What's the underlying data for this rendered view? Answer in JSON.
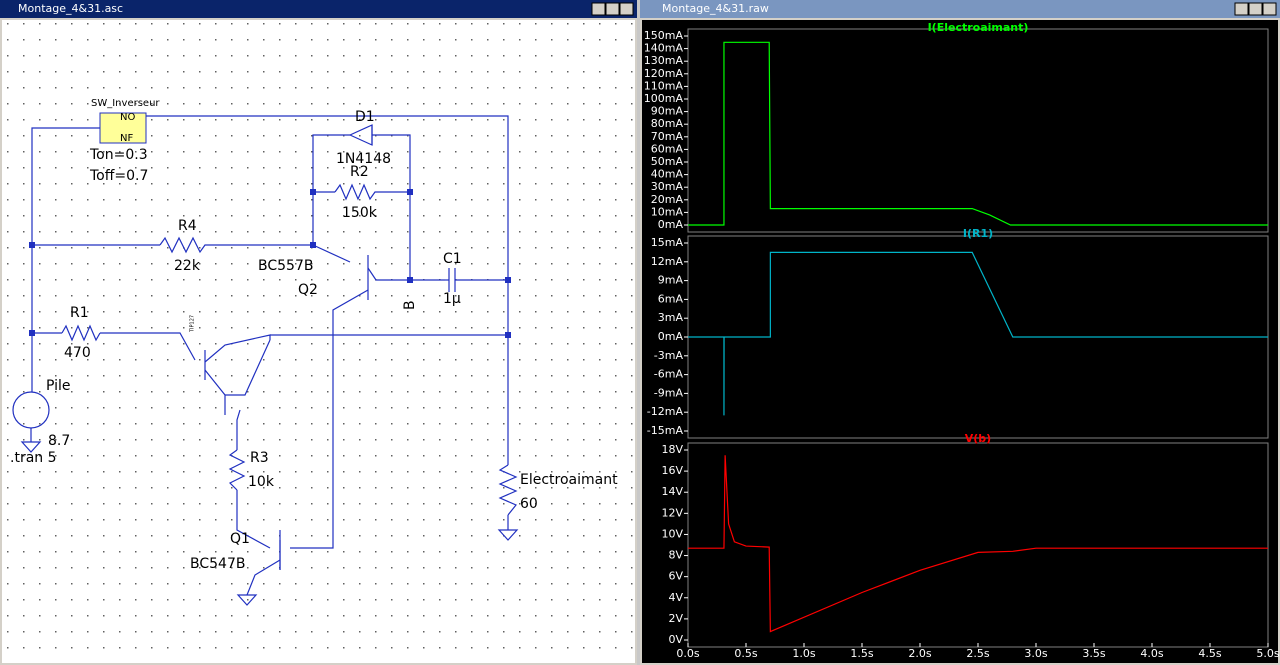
{
  "schematic_window": {
    "title": "Montage_4&31.asc",
    "labels": {
      "switch_name": "SW_Inverseur",
      "no": "NO",
      "nf": "NF",
      "ton": "Ton=0.3",
      "toff": "Toff=0.7",
      "d1": "D1",
      "d1_model": "1N4148",
      "r2": "R2",
      "r2_value": "150k",
      "r4": "R4",
      "r4_value": "22k",
      "q2_model": "BC557B",
      "q2": "Q2",
      "c1": "C1",
      "c1_value": "1µ",
      "node_b": "B",
      "r1": "R1",
      "r1_value": "470",
      "q3_model": "TIP127",
      "pile": "Pile",
      "pile_value": "8.7",
      "directive": ".tran 5",
      "r3": "R3",
      "r3_value": "10k",
      "q1": "Q1",
      "q1_model": "BC547B",
      "load": "Electroaimant",
      "load_value": "60"
    }
  },
  "waveform_window": {
    "title": "Montage_4&31.raw",
    "xlim": [
      0,
      5
    ],
    "xticks": [
      {
        "value": 0,
        "label": "0.0s"
      },
      {
        "value": 0.5,
        "label": "0.5s"
      },
      {
        "value": 1,
        "label": "1.0s"
      },
      {
        "value": 1.5,
        "label": "1.5s"
      },
      {
        "value": 2,
        "label": "2.0s"
      },
      {
        "value": 2.5,
        "label": "2.5s"
      },
      {
        "value": 3,
        "label": "3.0s"
      },
      {
        "value": 3.5,
        "label": "3.5s"
      },
      {
        "value": 4,
        "label": "4.0s"
      },
      {
        "value": 4.5,
        "label": "4.5s"
      },
      {
        "value": 5,
        "label": "5.0s"
      }
    ],
    "panes": [
      {
        "type": "line",
        "title": "I(Electroaimant)",
        "color": "#00ff00",
        "ylim": [
          0,
          150
        ],
        "yticks": [
          {
            "value": 0,
            "label": "0mA"
          },
          {
            "value": 10,
            "label": "10mA"
          },
          {
            "value": 20,
            "label": "20mA"
          },
          {
            "value": 30,
            "label": "30mA"
          },
          {
            "value": 40,
            "label": "40mA"
          },
          {
            "value": 50,
            "label": "50mA"
          },
          {
            "value": 60,
            "label": "60mA"
          },
          {
            "value": 70,
            "label": "70mA"
          },
          {
            "value": 80,
            "label": "80mA"
          },
          {
            "value": 90,
            "label": "90mA"
          },
          {
            "value": 100,
            "label": "100mA"
          },
          {
            "value": 110,
            "label": "110mA"
          },
          {
            "value": 120,
            "label": "120mA"
          },
          {
            "value": 130,
            "label": "130mA"
          },
          {
            "value": 140,
            "label": "140mA"
          },
          {
            "value": 150,
            "label": "150mA"
          }
        ],
        "x": [
          0,
          0.31,
          0.31,
          0.7,
          0.71,
          2.45,
          2.6,
          2.78,
          5
        ],
        "values": [
          0,
          0,
          145,
          145,
          13,
          13,
          8,
          0,
          0
        ]
      },
      {
        "type": "line",
        "title": "I(R1)",
        "color": "#00b4c8",
        "ylim": [
          -15,
          15
        ],
        "yticks": [
          {
            "value": -15,
            "label": "-15mA"
          },
          {
            "value": -12,
            "label": "-12mA"
          },
          {
            "value": -9,
            "label": "-9mA"
          },
          {
            "value": -6,
            "label": "-6mA"
          },
          {
            "value": -3,
            "label": "-3mA"
          },
          {
            "value": 0,
            "label": "0mA"
          },
          {
            "value": 3,
            "label": "3mA"
          },
          {
            "value": 6,
            "label": "6mA"
          },
          {
            "value": 9,
            "label": "9mA"
          },
          {
            "value": 12,
            "label": "12mA"
          },
          {
            "value": 15,
            "label": "15mA"
          }
        ],
        "x": [
          0,
          0.31,
          0.31,
          0.311,
          0.71,
          0.71,
          2.45,
          2.8,
          5
        ],
        "values": [
          0,
          0,
          -12.5,
          0,
          0,
          13.5,
          13.5,
          0,
          0
        ]
      },
      {
        "type": "line",
        "title": "V(b)",
        "color": "#ff0000",
        "ylim": [
          0,
          18
        ],
        "yticks": [
          {
            "value": 0,
            "label": "0V"
          },
          {
            "value": 2,
            "label": "2V"
          },
          {
            "value": 4,
            "label": "4V"
          },
          {
            "value": 6,
            "label": "6V"
          },
          {
            "value": 8,
            "label": "8V"
          },
          {
            "value": 10,
            "label": "10V"
          },
          {
            "value": 12,
            "label": "12V"
          },
          {
            "value": 14,
            "label": "14V"
          },
          {
            "value": 16,
            "label": "16V"
          },
          {
            "value": 18,
            "label": "18V"
          }
        ],
        "x": [
          0,
          0.31,
          0.32,
          0.35,
          0.4,
          0.5,
          0.7,
          0.71,
          1.5,
          2.0,
          2.5,
          2.8,
          3.0,
          5
        ],
        "values": [
          8.7,
          8.7,
          17.5,
          11,
          9.3,
          8.9,
          8.8,
          0.8,
          4.5,
          6.6,
          8.3,
          8.4,
          8.7,
          8.7
        ]
      }
    ]
  }
}
